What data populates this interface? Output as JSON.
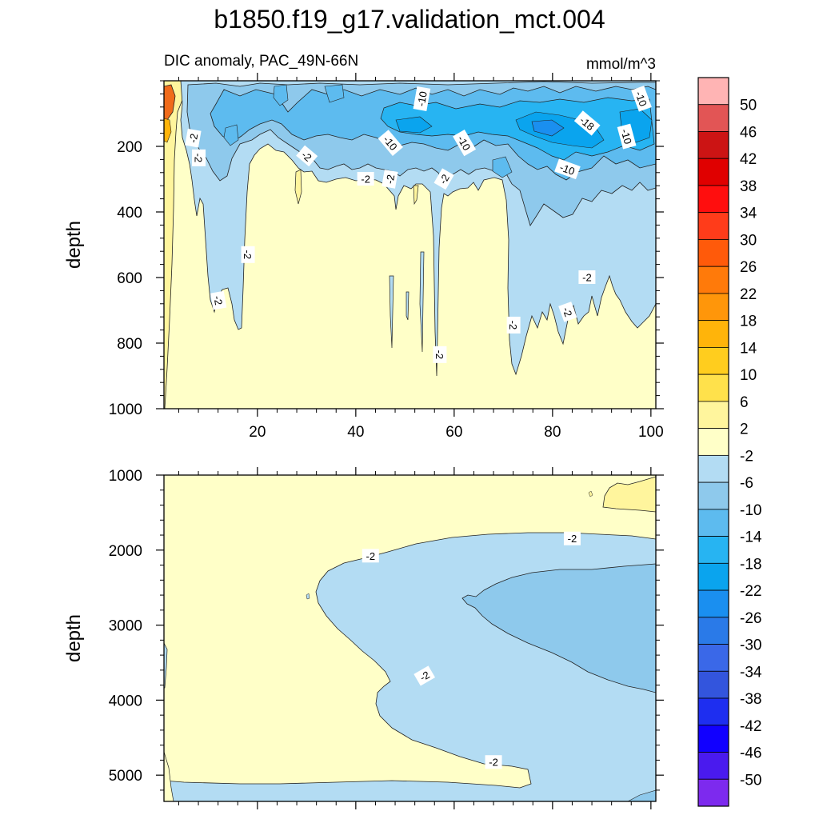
{
  "title": "b1850.f19_g17.validation_mct.004",
  "colors": {
    "ocean_ge_2": "#fff59d",
    "ocean_m2_2": "#ffffc8",
    "ocean_m6_m2": "#b3dcf3",
    "ocean_m10_m6": "#8ec9ec",
    "ocean_m14_m10": "#5dbbef",
    "ocean_m18_m14": "#27b4f2",
    "ocean_m22_m18": "#0aa4ee",
    "ocean_m26_m22": "#1a8ff0",
    "ocean_warm_hot": "#f06b1a"
  },
  "chart_data": [
    {
      "type": "contour",
      "subtitle_left": "DIC anomaly, PAC_49N-66N",
      "subtitle_right": "mmol/m^3",
      "ylabel": "depth",
      "xlim": [
        1,
        101
      ],
      "ylim": [
        1000,
        0
      ],
      "xticks": [
        20,
        40,
        60,
        80,
        100
      ],
      "xtick_labels": [
        "20",
        "40",
        "60",
        "80",
        "100"
      ],
      "yticks": [
        200,
        400,
        600,
        800,
        1000
      ],
      "ytick_labels": [
        "200",
        "400",
        "600",
        "800",
        "1000"
      ],
      "contour_labels": [
        {
          "text": "-10",
          "x": 53.5,
          "y": 55,
          "angle": -80
        },
        {
          "text": "-10",
          "x": 47,
          "y": 190,
          "angle": 50
        },
        {
          "text": "-10",
          "x": 62,
          "y": 190,
          "angle": 60
        },
        {
          "text": "-10",
          "x": 83,
          "y": 270,
          "angle": 20
        },
        {
          "text": "-10",
          "x": 95,
          "y": 170,
          "angle": 75
        },
        {
          "text": "-10",
          "x": 98,
          "y": 55,
          "angle": 70
        },
        {
          "text": "-18",
          "x": 87,
          "y": 130,
          "angle": 40
        },
        {
          "text": "-2",
          "x": 7,
          "y": 175,
          "angle": -80
        },
        {
          "text": "-2",
          "x": 8,
          "y": 235,
          "angle": 90
        },
        {
          "text": "-2",
          "x": 30,
          "y": 230,
          "angle": 40
        },
        {
          "text": "-2",
          "x": 42,
          "y": 300,
          "angle": 0
        },
        {
          "text": "-2",
          "x": 47,
          "y": 300,
          "angle": -80
        },
        {
          "text": "-2",
          "x": 58,
          "y": 300,
          "angle": -60
        },
        {
          "text": "-2",
          "x": 18,
          "y": 530,
          "angle": 90
        },
        {
          "text": "-2",
          "x": 12,
          "y": 670,
          "angle": 80
        },
        {
          "text": "-2",
          "x": 57,
          "y": 835,
          "angle": 90
        },
        {
          "text": "-2",
          "x": 72,
          "y": 745,
          "angle": 90
        },
        {
          "text": "-2",
          "x": 83,
          "y": 705,
          "angle": 70
        },
        {
          "text": "-2",
          "x": 87,
          "y": 600,
          "angle": 0
        }
      ]
    },
    {
      "type": "contour",
      "ylabel": "depth",
      "xlim": [
        1,
        101
      ],
      "ylim": [
        5350,
        1000
      ],
      "xticks": [
        20,
        40,
        60,
        80,
        100
      ],
      "yticks": [
        1000,
        2000,
        3000,
        4000,
        5000
      ],
      "ytick_labels": [
        "1000",
        "2000",
        "3000",
        "4000",
        "5000"
      ],
      "contour_labels": [
        {
          "text": "-2",
          "x": 43,
          "y": 2080,
          "angle": 0
        },
        {
          "text": "-2",
          "x": 84,
          "y": 1850,
          "angle": 0
        },
        {
          "text": "-2",
          "x": 54,
          "y": 3680,
          "angle": -30
        },
        {
          "text": "-2",
          "x": 68,
          "y": 4830,
          "angle": 0
        }
      ]
    }
  ],
  "colorbar": {
    "type": "colorbar",
    "labels": [
      "50",
      "46",
      "42",
      "38",
      "34",
      "30",
      "26",
      "22",
      "18",
      "14",
      "10",
      "6",
      "2",
      "-2",
      "-6",
      "-10",
      "-14",
      "-18",
      "-22",
      "-26",
      "-30",
      "-34",
      "-38",
      "-42",
      "-46",
      "-50"
    ],
    "colors": [
      "#ffb4b4",
      "#e25555",
      "#cc1414",
      "#e00000",
      "#ff0e0e",
      "#ff3c1a",
      "#ff5a0a",
      "#ff7a0a",
      "#ff960a",
      "#ffb40a",
      "#ffcd1e",
      "#ffe14b",
      "#fff59d",
      "#ffffc8",
      "#b3dcf3",
      "#8ec9ec",
      "#5dbbef",
      "#27b4f2",
      "#0aa4ee",
      "#1a8ff0",
      "#2a7ae8",
      "#3a68e8",
      "#3355dd",
      "#1e2ef0",
      "#1100ff",
      "#4a1aee",
      "#7d2aee"
    ]
  }
}
